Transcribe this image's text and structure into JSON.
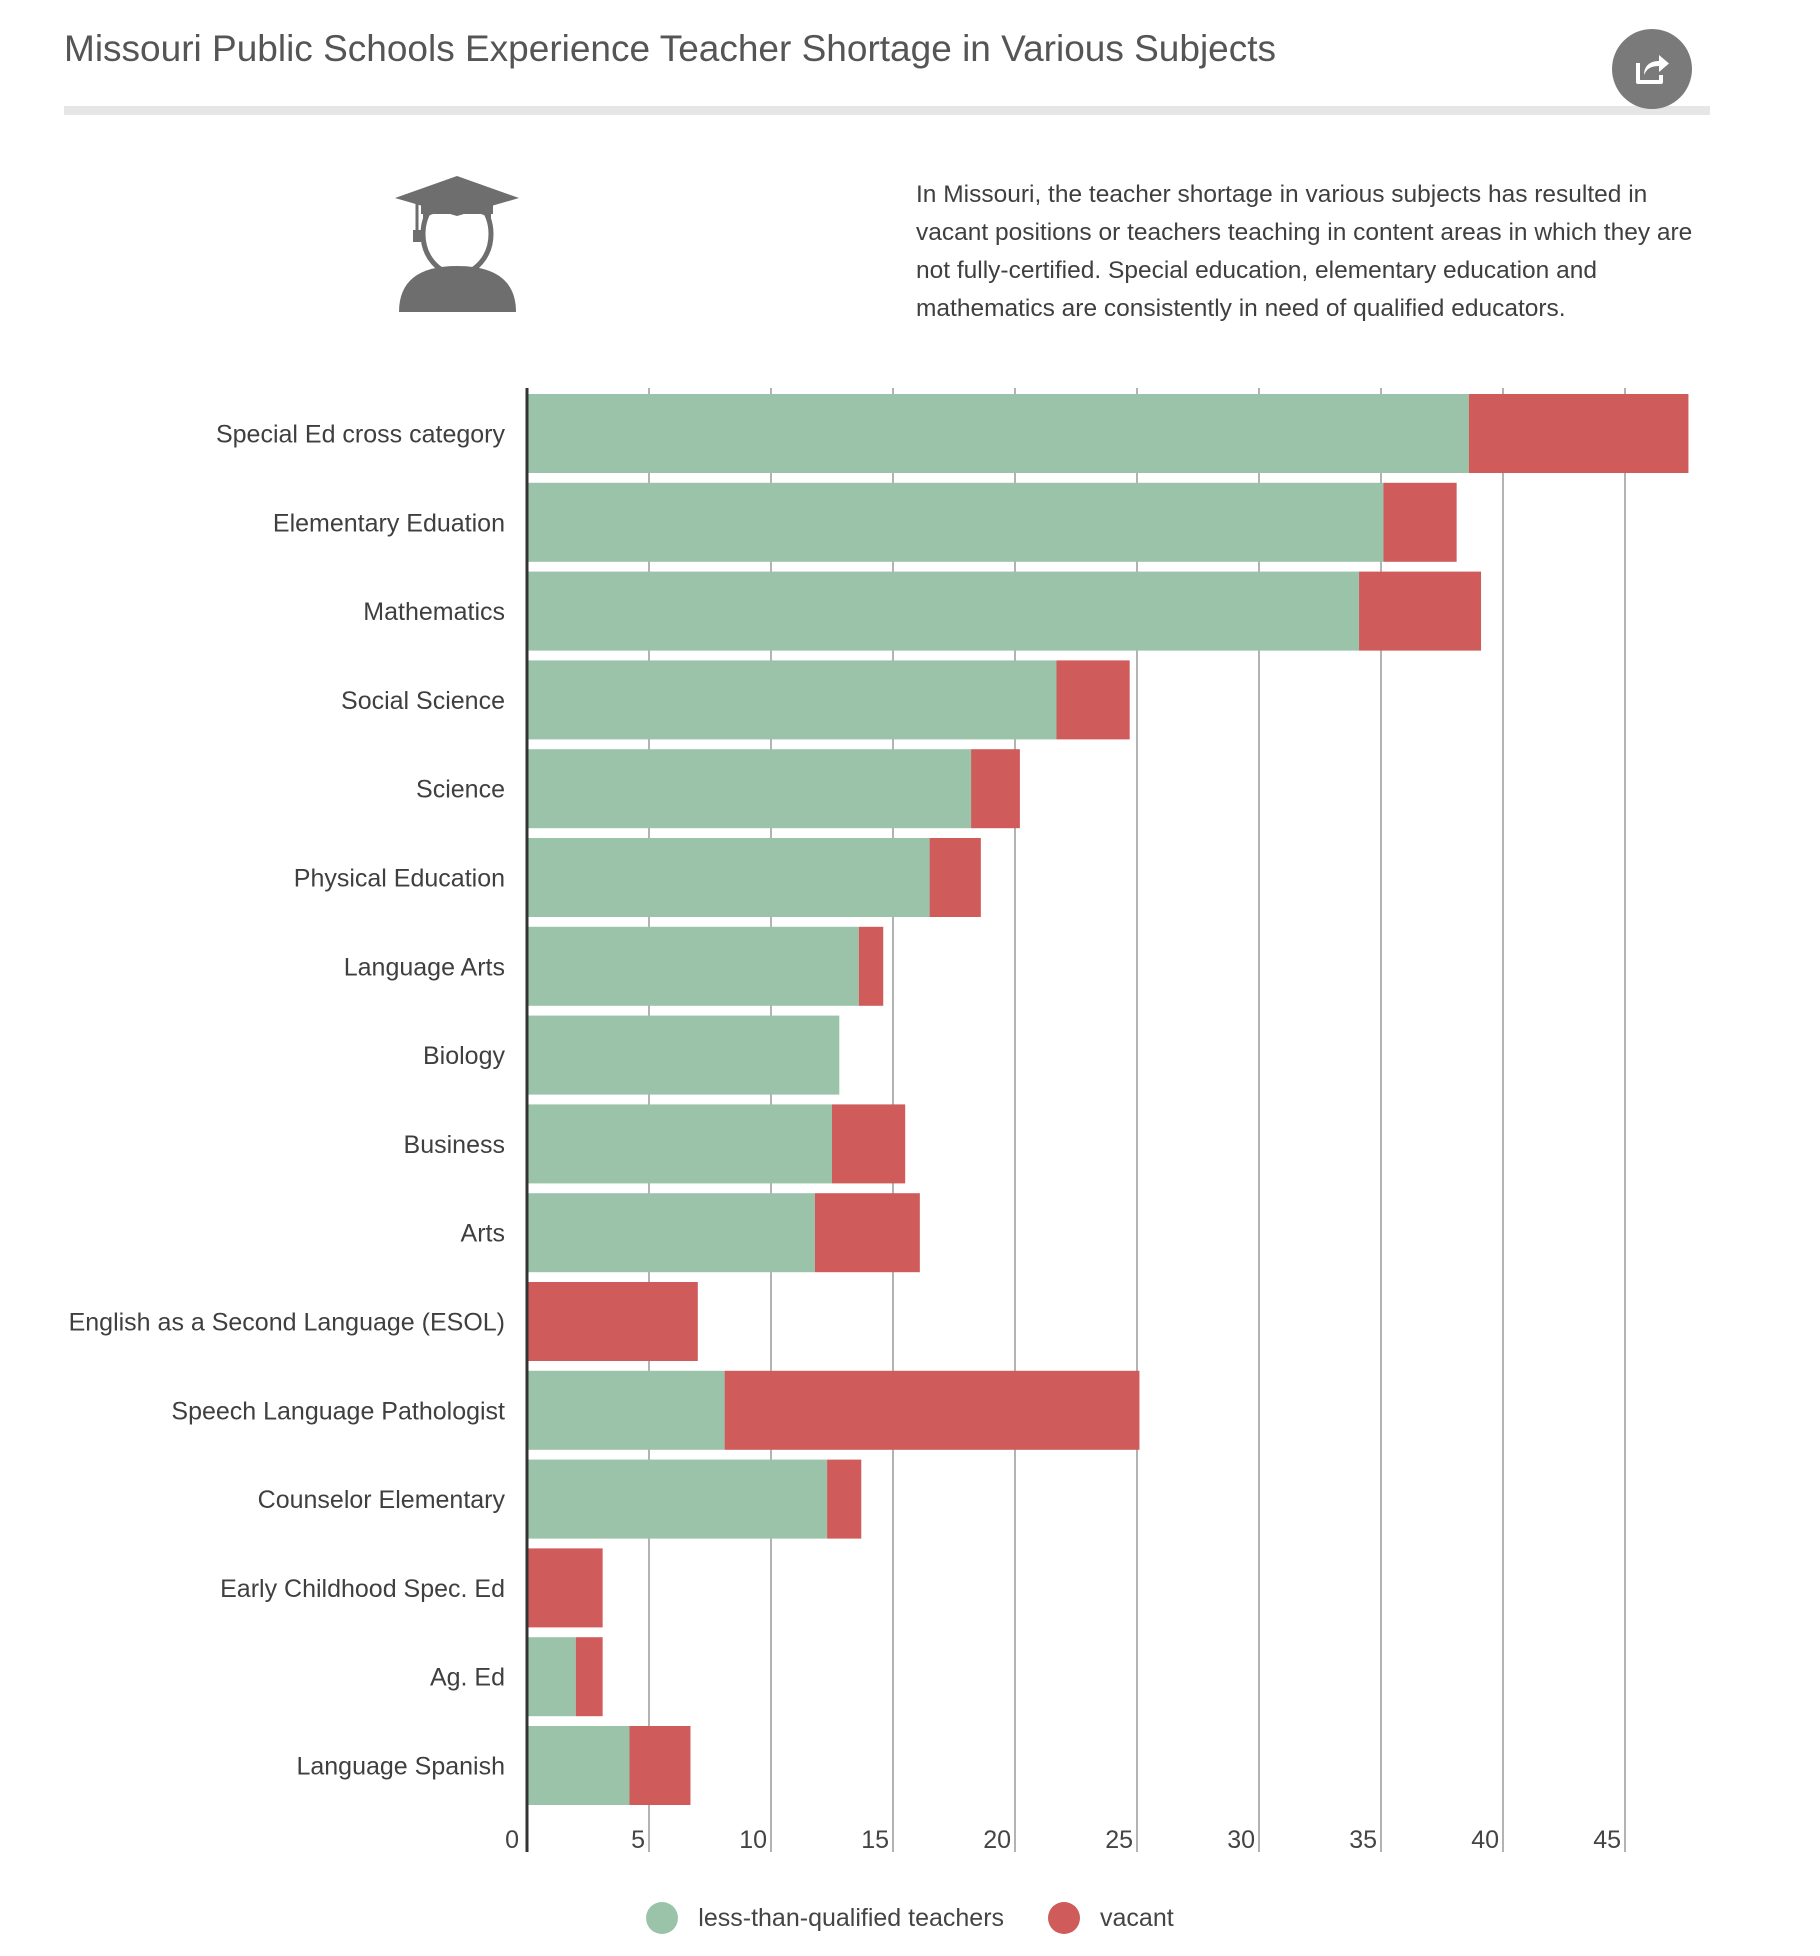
{
  "title": "Missouri Public Schools Experience Teacher Shortage in Various Subjects",
  "description": "In Missouri, the teacher shortage in various subjects has resulted in vacant positions or teachers teaching in content areas in which they are not fully-certified. Special education, elementary education and mathematics are consistently in need of qualified educators.",
  "colors": {
    "qualified": "#9ac3aa",
    "vacant": "#cf5b5b",
    "grid": "#9a9a9a",
    "axis": "#333333"
  },
  "icons": {
    "share": "share-icon",
    "graduate": "graduate-icon"
  },
  "chart_data": {
    "type": "bar",
    "orientation": "horizontal",
    "stacked": true,
    "categories": [
      "Special Ed cross category",
      "Elementary Eduation",
      "Mathematics",
      "Social Science",
      "Science",
      "Physical Education",
      "Language Arts",
      "Biology",
      "Business",
      "Arts",
      "English as a Second Language (ESOL)",
      "Speech Language Pathologist",
      "Counselor Elementary",
      "Early Childhood Spec. Ed",
      "Ag. Ed",
      "Language Spanish"
    ],
    "series": [
      {
        "name": "less-than-qualified teachers",
        "values": [
          38.6,
          35.1,
          34.1,
          21.7,
          18.2,
          16.5,
          13.6,
          12.8,
          12.5,
          11.8,
          0,
          8.1,
          12.3,
          0,
          2.0,
          4.2
        ]
      },
      {
        "name": "vacant",
        "values": [
          9.0,
          3.0,
          5.0,
          3.0,
          2.0,
          2.1,
          1.0,
          0,
          3.0,
          4.3,
          7.0,
          17.0,
          1.4,
          3.1,
          1.1,
          2.5
        ]
      }
    ],
    "xticks": [
      0,
      5,
      10,
      15,
      20,
      25,
      30,
      35,
      40,
      45
    ],
    "xlim": [
      0,
      48
    ],
    "grid": true,
    "legend_position": "bottom"
  }
}
